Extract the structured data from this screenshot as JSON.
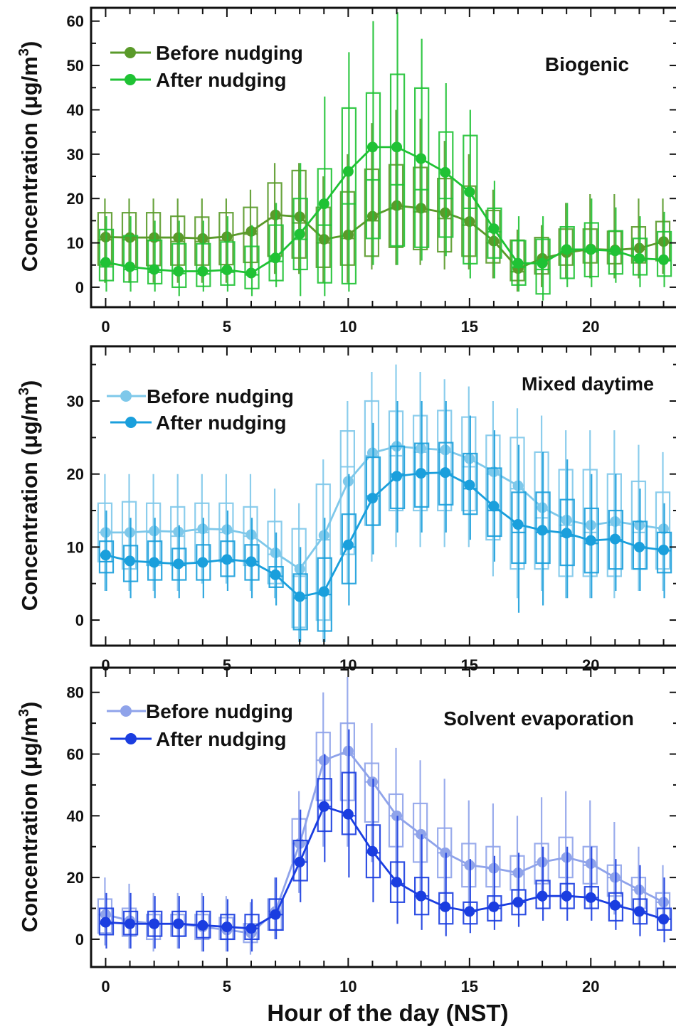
{
  "figure": {
    "xlabel": "Hour of the day (NST)",
    "ylabel_main": "Concentration (μg/m",
    "ylabel_sup": "3",
    "ylabel_close": ")"
  },
  "chart_data": [
    {
      "type": "line",
      "panel_label": "Biogenic",
      "xlim": [
        -0.6,
        23.6
      ],
      "ylim": [
        -4.5,
        63
      ],
      "x_ticks": [
        0,
        5,
        10,
        15,
        20
      ],
      "y_ticks": [
        0,
        10,
        20,
        30,
        40,
        50,
        60
      ],
      "legend_position": "top-left",
      "series": [
        {
          "name": "Before nudging",
          "color": "#5a9a2a",
          "x": [
            0,
            1,
            2,
            3,
            4,
            5,
            6,
            7,
            8,
            9,
            10,
            11,
            12,
            13,
            14,
            15,
            16,
            17,
            18,
            19,
            20,
            21,
            22,
            23
          ],
          "y": [
            11.3,
            11.2,
            11.2,
            11.2,
            11,
            11.4,
            12.6,
            16.3,
            15.9,
            10.8,
            11.8,
            16,
            18.4,
            17.8,
            16.8,
            14.8,
            10.4,
            4.2,
            6.5,
            7.8,
            8.6,
            8.4,
            8.8,
            10.3
          ],
          "box_low": [
            5,
            4.8,
            4.9,
            5,
            5,
            5.1,
            5.6,
            7,
            6.6,
            4.5,
            5,
            7,
            9,
            8.5,
            8,
            7,
            5.5,
            1.5,
            3,
            5,
            5.5,
            5.3,
            5.5,
            6
          ],
          "box_high": [
            16.8,
            16.8,
            16.8,
            16,
            15.8,
            16.8,
            18,
            23.5,
            26.3,
            18,
            21.5,
            26.6,
            27.6,
            27,
            24.5,
            22.8,
            17.3,
            10.6,
            11.2,
            13.1,
            13.1,
            12.6,
            13.6,
            14.8
          ],
          "median": [
            10.7,
            10.7,
            10.5,
            10.3,
            10.3,
            10.6,
            12,
            15.5,
            14.5,
            10,
            11,
            15,
            17.7,
            17,
            15.5,
            14,
            10,
            3.5,
            6,
            7.5,
            8,
            8,
            8.5,
            10
          ],
          "whisker_low": [
            1,
            1,
            1,
            1,
            1,
            1,
            2,
            3,
            3,
            1,
            1,
            4,
            5,
            5,
            4,
            4,
            2,
            -1,
            0,
            2,
            2,
            2,
            2,
            3
          ],
          "whisker_high": [
            20,
            20,
            20,
            20,
            20,
            20,
            22,
            28,
            28,
            25,
            30,
            37,
            40,
            38,
            33,
            30,
            22,
            13,
            14,
            19,
            21,
            21,
            20,
            20
          ]
        },
        {
          "name": "After nudging",
          "color": "#1fc234",
          "x": [
            0,
            1,
            2,
            3,
            4,
            5,
            6,
            7,
            8,
            9,
            10,
            11,
            12,
            13,
            14,
            15,
            16,
            17,
            18,
            19,
            20,
            21,
            22,
            23
          ],
          "y": [
            5.6,
            4.6,
            4,
            3.6,
            3.6,
            3.9,
            3.2,
            6.6,
            12,
            18.8,
            26.1,
            31.6,
            31.6,
            29,
            25.9,
            21.5,
            13.2,
            5.4,
            5.4,
            8.5,
            8.5,
            8.2,
            6.5,
            6.2
          ],
          "box_low": [
            1.5,
            1.2,
            0.8,
            0,
            0.2,
            0.5,
            -0.3,
            1.5,
            4,
            1,
            0.8,
            11,
            9.3,
            9,
            11.3,
            5.3,
            6.6,
            0.5,
            -1.5,
            2,
            2.4,
            3,
            2.8,
            2.5
          ],
          "box_high": [
            13,
            11.6,
            10.6,
            9.8,
            9.8,
            10.2,
            9.2,
            14,
            20,
            26.7,
            40.4,
            43.8,
            48,
            44.9,
            35,
            34.2,
            17.8,
            10.5,
            10.8,
            13.6,
            14.5,
            12.7,
            11,
            12.5
          ],
          "median": [
            4.6,
            4,
            3.4,
            3.1,
            3,
            3.4,
            2.8,
            5.8,
            10.8,
            14,
            18.8,
            24.2,
            23.1,
            22,
            20,
            17.8,
            12.5,
            4.5,
            4,
            8,
            8,
            7.5,
            6,
            6
          ],
          "whisker_low": [
            -1,
            -1,
            -1,
            -2,
            -1,
            -1,
            -2,
            0,
            -2,
            -2,
            -1,
            5,
            5,
            6,
            7,
            2,
            2,
            -1,
            -3,
            0,
            0,
            1,
            0,
            0
          ],
          "whisker_high": [
            16,
            16,
            15,
            15,
            15,
            16,
            14,
            19,
            28,
            43,
            53,
            60,
            62,
            56,
            46,
            40,
            24,
            16,
            16,
            19,
            20,
            18,
            16,
            17
          ]
        }
      ]
    },
    {
      "type": "line",
      "panel_label": "Mixed daytime",
      "xlim": [
        -0.6,
        23.6
      ],
      "ylim": [
        -3.5,
        37.5
      ],
      "x_ticks": [
        0,
        5,
        10,
        15,
        20
      ],
      "y_ticks": [
        0,
        10,
        20,
        30
      ],
      "legend_position": "top-left",
      "series": [
        {
          "name": "Before nudging",
          "color": "#7ec8ea",
          "x": [
            0,
            1,
            2,
            3,
            4,
            5,
            6,
            7,
            8,
            9,
            10,
            11,
            12,
            13,
            14,
            15,
            16,
            17,
            18,
            19,
            20,
            21,
            22,
            23
          ],
          "y": [
            12,
            12,
            12.2,
            12.1,
            12.5,
            12.4,
            11.7,
            9.2,
            7,
            11.6,
            19,
            22.9,
            23.8,
            23.5,
            23.3,
            22.1,
            20.3,
            18.4,
            15.4,
            13.7,
            13,
            13.5,
            13,
            12.5
          ],
          "box_low": [
            8,
            7,
            7.5,
            7.5,
            8,
            8,
            7.5,
            5,
            -1,
            0,
            9,
            13,
            15,
            15,
            15,
            15,
            11,
            7,
            7,
            6,
            6,
            6,
            7,
            7
          ],
          "box_high": [
            16,
            16.2,
            16,
            15.5,
            16,
            16,
            15.5,
            13.5,
            12.5,
            18.6,
            25.9,
            30,
            28.6,
            28,
            28.7,
            27.8,
            25.3,
            25,
            23,
            20.6,
            20.6,
            20,
            19,
            17.5
          ],
          "median": [
            12,
            12,
            12,
            11.5,
            12,
            12,
            11.5,
            9,
            6,
            11,
            21,
            22.5,
            22.5,
            23,
            23,
            21,
            20,
            18,
            14,
            13,
            12,
            13,
            12,
            12
          ],
          "whisker_low": [
            4,
            4,
            4,
            4,
            5,
            5,
            4,
            3,
            -3,
            -3,
            5,
            8,
            10,
            10,
            10,
            10,
            6,
            3,
            4,
            3,
            3,
            3,
            4,
            4
          ],
          "whisker_high": [
            20,
            20,
            20,
            20,
            20,
            20,
            20,
            18,
            16,
            22,
            30,
            34,
            35,
            34,
            33,
            32,
            30,
            29,
            28,
            26,
            26,
            26,
            24,
            23
          ]
        },
        {
          "name": "After nudging",
          "color": "#1a9fdc",
          "x": [
            0,
            1,
            2,
            3,
            4,
            5,
            6,
            7,
            8,
            9,
            10,
            11,
            12,
            13,
            14,
            15,
            16,
            17,
            18,
            19,
            20,
            21,
            22,
            23
          ],
          "y": [
            8.9,
            8.1,
            7.9,
            7.7,
            7.9,
            8.3,
            8,
            6.2,
            3.2,
            3.9,
            10.3,
            16.7,
            19.7,
            20.1,
            20.2,
            18.5,
            15.6,
            13.1,
            12.3,
            11.9,
            10.9,
            11.1,
            10,
            9.6
          ],
          "box_low": [
            6.5,
            5.3,
            5.5,
            5.5,
            5.5,
            6,
            5.5,
            4.5,
            -1.3,
            -1.5,
            5,
            13,
            15.3,
            15.5,
            15.8,
            14.5,
            11.5,
            7.8,
            7.8,
            7.5,
            6.5,
            7,
            7,
            6.5
          ],
          "box_high": [
            10.8,
            10.2,
            10.8,
            9.8,
            10.3,
            10.8,
            10.3,
            7.3,
            6.3,
            8.5,
            14.5,
            22.3,
            23.8,
            24.2,
            24.3,
            22.8,
            20.8,
            17.5,
            17.5,
            16.5,
            15.3,
            15,
            13.5,
            12
          ],
          "median": [
            8,
            8,
            8,
            7.5,
            8,
            8,
            8,
            6,
            3,
            3.5,
            10,
            17,
            20,
            20,
            20,
            18,
            15,
            12,
            12,
            11.5,
            10.5,
            11,
            10,
            9.5
          ],
          "whisker_low": [
            4,
            3,
            3,
            3,
            3,
            4,
            3,
            2,
            -3,
            -3,
            2,
            9,
            12,
            12,
            12,
            11,
            8,
            1,
            2,
            3,
            3,
            4,
            4,
            3
          ],
          "whisker_high": [
            15,
            14,
            14,
            13,
            14,
            15,
            14,
            12,
            10,
            14,
            20,
            27,
            30,
            30,
            30,
            28,
            26,
            24,
            23,
            22,
            20,
            20,
            18,
            16
          ]
        }
      ]
    },
    {
      "type": "line",
      "panel_label": "Solvent evaporation",
      "xlim": [
        -0.6,
        23.6
      ],
      "ylim": [
        -9,
        88
      ],
      "x_ticks": [
        0,
        5,
        10,
        15,
        20
      ],
      "y_ticks": [
        0,
        20,
        40,
        60,
        80
      ],
      "legend_position": "top-left",
      "series": [
        {
          "name": "Before nudging",
          "color": "#8fa3ea",
          "x": [
            0,
            1,
            2,
            3,
            4,
            5,
            6,
            7,
            8,
            9,
            10,
            11,
            12,
            13,
            14,
            15,
            16,
            17,
            18,
            19,
            20,
            21,
            22,
            23
          ],
          "y": [
            8,
            6,
            5,
            5,
            4,
            3,
            2,
            9,
            31,
            58,
            61,
            51,
            40,
            34,
            28,
            24,
            23,
            21.5,
            25,
            26.5,
            24.5,
            20,
            16,
            12
          ],
          "box_low": [
            2,
            1,
            0,
            1,
            0,
            0,
            -1,
            3,
            25,
            45,
            45,
            38,
            30,
            25,
            20,
            17,
            17,
            16,
            18,
            20,
            18,
            14,
            10,
            7
          ],
          "box_high": [
            13,
            10,
            8,
            8,
            8,
            7,
            5,
            13,
            39,
            67,
            70,
            57,
            47,
            44,
            36,
            31,
            30,
            27,
            31,
            33,
            30,
            24,
            20,
            15
          ],
          "median": [
            8,
            6,
            5,
            5,
            4,
            3,
            2,
            9,
            31,
            58,
            60,
            51,
            40,
            34,
            28,
            24,
            23,
            21,
            25,
            26,
            24,
            20,
            16,
            12
          ],
          "whisker_low": [
            -2,
            -3,
            -4,
            -3,
            -4,
            -4,
            -5,
            0,
            15,
            30,
            30,
            25,
            20,
            15,
            12,
            10,
            10,
            10,
            12,
            12,
            10,
            8,
            5,
            3
          ],
          "whisker_high": [
            20,
            18,
            15,
            15,
            15,
            14,
            12,
            20,
            48,
            80,
            85,
            70,
            62,
            58,
            52,
            45,
            44,
            40,
            46,
            48,
            45,
            38,
            30,
            24
          ]
        },
        {
          "name": "After nudging",
          "color": "#1a3de0",
          "x": [
            0,
            1,
            2,
            3,
            4,
            5,
            6,
            7,
            8,
            9,
            10,
            11,
            12,
            13,
            14,
            15,
            16,
            17,
            18,
            19,
            20,
            21,
            22,
            23
          ],
          "y": [
            5.5,
            5,
            5,
            5,
            4.5,
            4,
            3.5,
            8,
            25,
            43,
            40.5,
            28.5,
            18.5,
            14,
            10.5,
            9,
            10.5,
            12,
            14,
            14,
            13.5,
            11,
            9,
            6.5
          ],
          "box_low": [
            1.5,
            1.5,
            1,
            1,
            0.5,
            0,
            0,
            3,
            19,
            35,
            34,
            20,
            12,
            8,
            5,
            5,
            6,
            8,
            10,
            10,
            10,
            6,
            5,
            3
          ],
          "box_high": [
            10,
            9,
            9,
            9,
            9,
            8,
            8,
            13,
            32,
            52,
            54,
            37,
            25,
            20,
            15,
            12,
            14,
            16,
            19,
            18,
            17,
            15,
            13,
            10
          ],
          "median": [
            5,
            5,
            5,
            5,
            4.5,
            4,
            3.5,
            8,
            25,
            43,
            40,
            28,
            18,
            14,
            10,
            9,
            10,
            12,
            14,
            14,
            13.5,
            11,
            9,
            6.5
          ],
          "whisker_low": [
            -3,
            -3,
            -3,
            -3,
            -4,
            -4,
            -4,
            0,
            12,
            25,
            20,
            12,
            5,
            3,
            1,
            2,
            3,
            4,
            6,
            6,
            6,
            3,
            1,
            -1
          ],
          "whisker_high": [
            15,
            15,
            14,
            14,
            14,
            13,
            13,
            20,
            42,
            60,
            68,
            52,
            40,
            34,
            28,
            26,
            27,
            28,
            30,
            30,
            30,
            26,
            24,
            20
          ]
        }
      ]
    }
  ]
}
